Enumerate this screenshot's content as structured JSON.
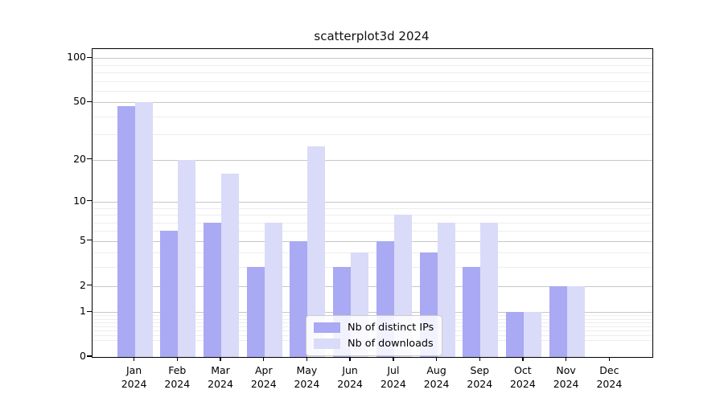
{
  "title": "scatterplot3d 2024",
  "chart_data": {
    "type": "bar",
    "title": "scatterplot3d 2024",
    "categories": [
      "Jan 2024",
      "Feb 2024",
      "Mar 2024",
      "Apr 2024",
      "May 2024",
      "Jun 2024",
      "Jul 2024",
      "Aug 2024",
      "Sep 2024",
      "Oct 2024",
      "Nov 2024",
      "Dec 2024"
    ],
    "series": [
      {
        "name": "Nb of distinct IPs",
        "color": "#a9a9f4",
        "values": [
          47,
          6,
          7,
          3,
          5,
          3,
          5,
          4,
          3,
          1,
          2,
          0
        ]
      },
      {
        "name": "Nb of downloads",
        "color": "#dadaf9",
        "values": [
          50,
          20,
          16,
          7,
          25,
          4,
          8,
          7,
          7,
          1,
          2,
          0
        ]
      }
    ],
    "xlabel": "",
    "ylabel": "",
    "yscale": "log1p",
    "ylim": [
      0,
      115
    ],
    "yticks": [
      0,
      1,
      2,
      5,
      10,
      20,
      50,
      100
    ],
    "minor_yticks": [
      0.3,
      0.4,
      0.5,
      0.6,
      0.7,
      0.8,
      0.9,
      3,
      4,
      6,
      7,
      8,
      9,
      30,
      40,
      60,
      70,
      80,
      90
    ],
    "grid": true,
    "legend_position": "lower center",
    "colors": {
      "major_grid": "#c6c6c6",
      "minor_grid": "#ededed",
      "spine": "#000000",
      "background": "#ffffff"
    }
  }
}
